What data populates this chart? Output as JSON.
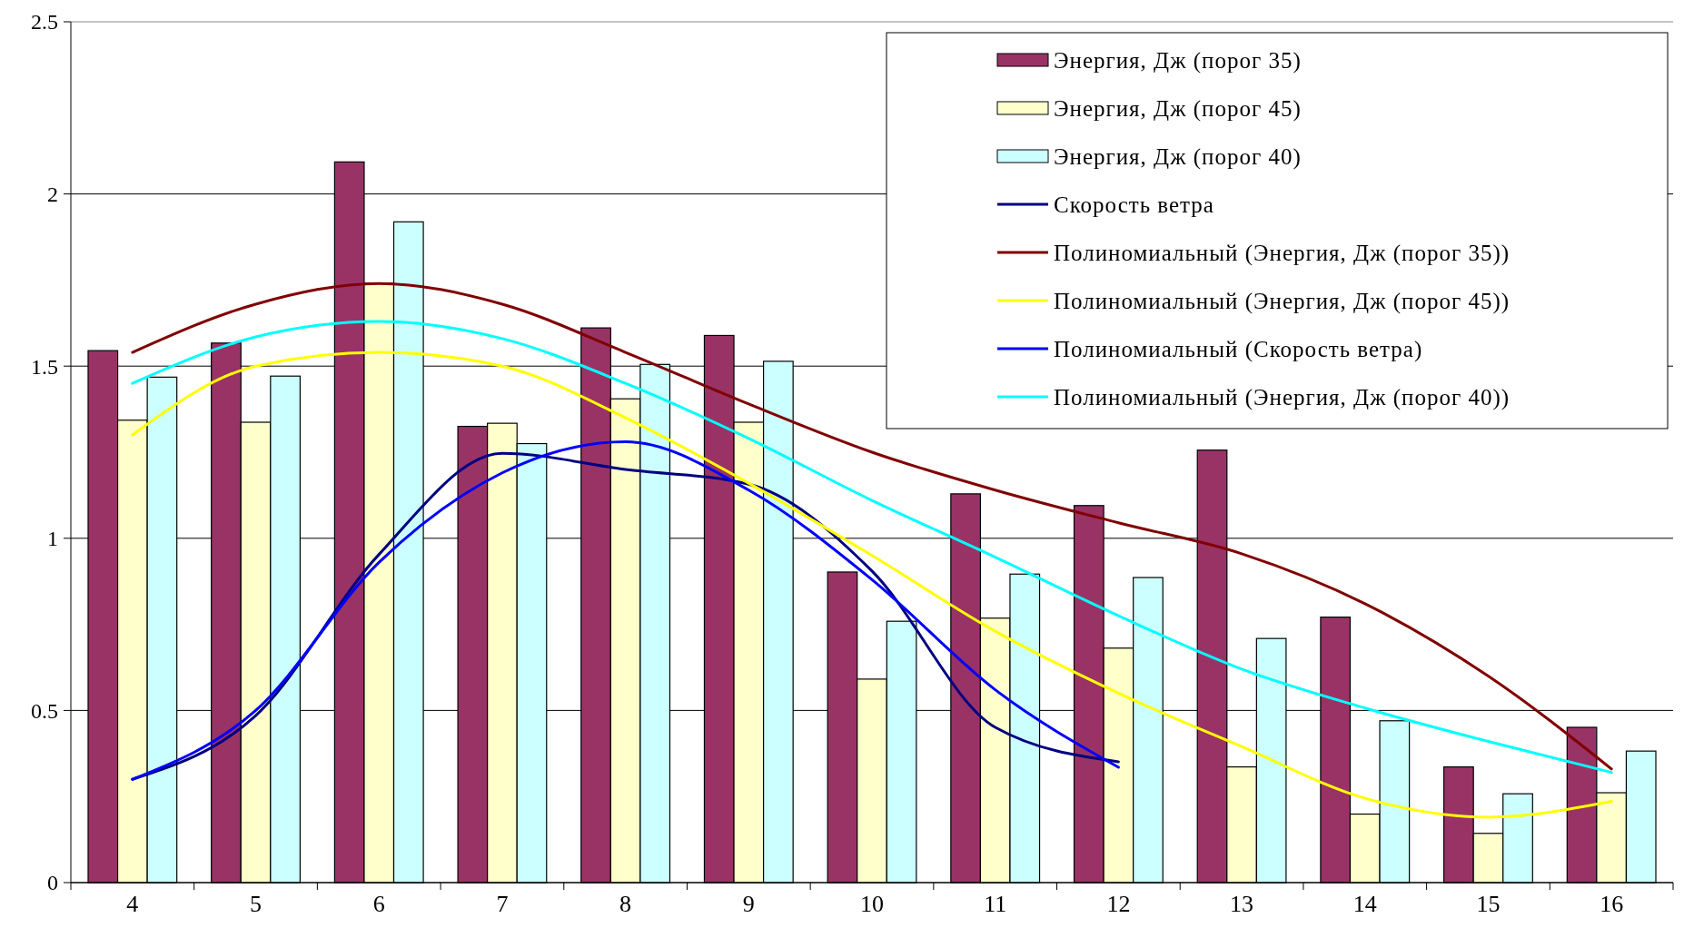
{
  "chart_data": {
    "type": "bar",
    "categories": [
      "4",
      "5",
      "6",
      "7",
      "8",
      "9",
      "10",
      "11",
      "12",
      "13",
      "14",
      "15",
      "16"
    ],
    "ylim": [
      0,
      2.5
    ],
    "yticks": [
      0,
      0.5,
      1,
      1.5,
      2,
      2.5
    ],
    "grid": "y",
    "legend": "top right",
    "series": [
      {
        "name": "Энергия, Дж (порог 35)",
        "color": "#993366",
        "values": [
          1.545,
          1.567,
          2.093,
          1.325,
          1.611,
          1.589,
          0.902,
          1.129,
          1.095,
          1.256,
          0.771,
          0.336,
          0.451
        ]
      },
      {
        "name": "Энергия, Дж (порог 45)",
        "color": "#ffffcc",
        "values": [
          1.343,
          1.337,
          1.741,
          1.334,
          1.405,
          1.337,
          0.591,
          0.768,
          0.681,
          0.336,
          0.199,
          0.143,
          0.261
        ]
      },
      {
        "name": "Энергия, Дж (порог 40)",
        "color": "#ccffff",
        "values": [
          1.468,
          1.471,
          1.919,
          1.275,
          1.505,
          1.514,
          0.759,
          0.896,
          0.886,
          0.709,
          0.47,
          0.258,
          0.382
        ]
      },
      {
        "name": "Скорость ветра",
        "type": "line",
        "color": "#000080",
        "values": [
          0.3,
          0.485,
          0.953,
          1.247,
          1.2,
          1.157,
          0.905,
          0.451,
          0.351,
          null,
          null,
          null,
          null
        ]
      },
      {
        "name": "Полиномиальный (Энергия, Дж (порог 35))",
        "type": "line",
        "color": "#800000",
        "values": [
          1.54,
          1.68,
          1.74,
          1.68,
          1.54,
          1.39,
          1.25,
          1.14,
          1.045,
          0.955,
          0.81,
          0.6,
          0.33
        ]
      },
      {
        "name": "Полиномиальный (Энергия, Дж (порог 45))",
        "type": "line",
        "color": "#ffff00",
        "values": [
          1.3,
          1.5,
          1.54,
          1.5,
          1.35,
          1.16,
          0.95,
          0.73,
          0.55,
          0.395,
          0.245,
          0.19,
          0.236
        ]
      },
      {
        "name": "Полиномиальный (Скорость ветра)",
        "type": "line",
        "color": "#0000ff",
        "values": [
          0.3,
          0.5,
          0.93,
          1.19,
          1.28,
          1.14,
          0.88,
          0.56,
          0.335,
          null,
          null,
          null,
          null
        ]
      },
      {
        "name": "Полиномиальный (Энергия, Дж (порог 40))",
        "type": "line",
        "color": "#00ffff",
        "values": [
          1.45,
          1.585,
          1.63,
          1.58,
          1.45,
          1.29,
          1.11,
          0.945,
          0.775,
          0.62,
          0.507,
          0.41,
          0.32
        ]
      }
    ]
  }
}
